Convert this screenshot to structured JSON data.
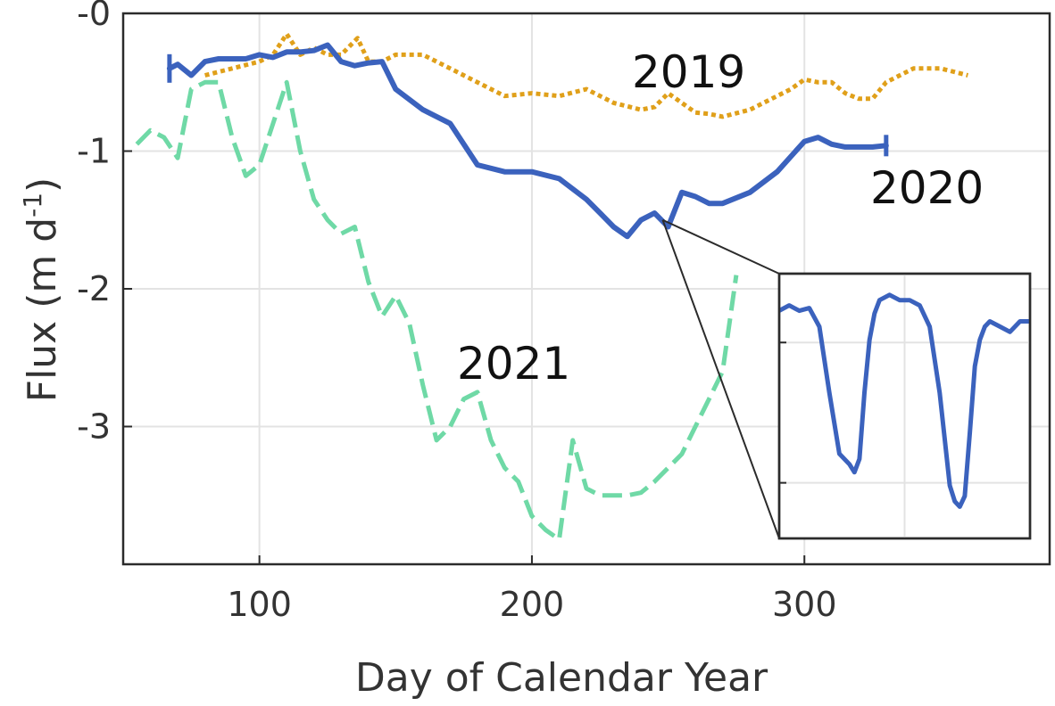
{
  "chart_data": {
    "type": "line",
    "title": "",
    "xlabel": "Day of Calendar Year",
    "ylabel_main": "Flux (m d",
    "ylabel_sup": "-1",
    "ylabel_close": ")",
    "xlim": [
      50,
      390
    ],
    "ylim": [
      -4.0,
      0.0
    ],
    "xticks": [
      100,
      200,
      300
    ],
    "xtick_labels": [
      "100",
      "200",
      "300"
    ],
    "yticks": [
      0,
      -1,
      -2,
      -3
    ],
    "ytick_labels": [
      "-0",
      "-1",
      "-2",
      "-3"
    ],
    "grid": true,
    "series": [
      {
        "name": "2019",
        "color": "#e0a01a",
        "style": "dotted",
        "x": [
          80,
          90,
          100,
          105,
          110,
          115,
          120,
          125,
          130,
          136,
          140,
          145,
          150,
          160,
          170,
          180,
          190,
          200,
          210,
          220,
          225,
          230,
          240,
          245,
          250,
          255,
          260,
          265,
          270,
          280,
          290,
          295,
          300,
          305,
          310,
          315,
          320,
          325,
          330,
          340,
          350,
          360
        ],
        "y": [
          -0.45,
          -0.4,
          -0.35,
          -0.3,
          -0.15,
          -0.3,
          -0.25,
          -0.3,
          -0.3,
          -0.18,
          -0.35,
          -0.35,
          -0.3,
          -0.3,
          -0.4,
          -0.5,
          -0.6,
          -0.58,
          -0.6,
          -0.55,
          -0.6,
          -0.65,
          -0.7,
          -0.68,
          -0.58,
          -0.65,
          -0.72,
          -0.73,
          -0.75,
          -0.7,
          -0.6,
          -0.55,
          -0.48,
          -0.5,
          -0.5,
          -0.58,
          -0.62,
          -0.62,
          -0.5,
          -0.4,
          -0.4,
          -0.45
        ]
      },
      {
        "name": "2020",
        "color": "#3b62bd",
        "style": "solid",
        "x": [
          67,
          70,
          75,
          80,
          85,
          90,
          95,
          100,
          105,
          110,
          115,
          120,
          125,
          130,
          135,
          140,
          145,
          150,
          160,
          170,
          180,
          190,
          200,
          210,
          220,
          225,
          230,
          235,
          240,
          245,
          250,
          255,
          260,
          265,
          270,
          280,
          290,
          300,
          305,
          310,
          315,
          320,
          325,
          330
        ],
        "y": [
          -0.4,
          -0.37,
          -0.45,
          -0.35,
          -0.33,
          -0.33,
          -0.33,
          -0.3,
          -0.32,
          -0.28,
          -0.28,
          -0.27,
          -0.23,
          -0.35,
          -0.38,
          -0.36,
          -0.35,
          -0.55,
          -0.7,
          -0.8,
          -1.1,
          -1.15,
          -1.15,
          -1.2,
          -1.35,
          -1.45,
          -1.55,
          -1.62,
          -1.5,
          -1.45,
          -1.55,
          -1.3,
          -1.33,
          -1.38,
          -1.38,
          -1.3,
          -1.15,
          -0.93,
          -0.9,
          -0.95,
          -0.97,
          -0.97,
          -0.97,
          -0.96
        ]
      },
      {
        "name": "2021",
        "color": "#6fd9a6",
        "style": "dashed",
        "x": [
          55,
          60,
          65,
          70,
          75,
          80,
          85,
          90,
          95,
          100,
          105,
          110,
          115,
          120,
          125,
          130,
          135,
          140,
          145,
          150,
          155,
          160,
          165,
          170,
          175,
          180,
          185,
          190,
          195,
          200,
          205,
          210,
          215,
          220,
          225,
          230,
          235,
          240,
          245,
          250,
          255,
          260,
          265,
          270,
          275
        ],
        "y": [
          -0.95,
          -0.85,
          -0.9,
          -1.05,
          -0.55,
          -0.5,
          -0.5,
          -0.9,
          -1.18,
          -1.1,
          -0.8,
          -0.5,
          -1.0,
          -1.35,
          -1.5,
          -1.6,
          -1.55,
          -1.95,
          -2.2,
          -2.05,
          -2.25,
          -2.7,
          -3.1,
          -3.0,
          -2.8,
          -2.75,
          -3.1,
          -3.3,
          -3.4,
          -3.65,
          -3.75,
          -3.82,
          -3.1,
          -3.45,
          -3.5,
          -3.5,
          -3.5,
          -3.48,
          -3.4,
          -3.3,
          -3.2,
          -3.0,
          -2.8,
          -2.6,
          -1.9
        ]
      }
    ],
    "inset": {
      "color": "#3b62bd",
      "zoom_x": 248,
      "zoom_y": -1.5,
      "x": [
        0,
        0.04,
        0.08,
        0.12,
        0.16,
        0.2,
        0.24,
        0.28,
        0.3,
        0.32,
        0.34,
        0.36,
        0.38,
        0.4,
        0.44,
        0.48,
        0.52,
        0.56,
        0.6,
        0.64,
        0.68,
        0.7,
        0.72,
        0.74,
        0.76,
        0.78,
        0.8,
        0.82,
        0.84,
        0.88,
        0.92,
        0.96,
        1.0
      ],
      "y": [
        0.14,
        0.12,
        0.14,
        0.13,
        0.2,
        0.45,
        0.68,
        0.72,
        0.75,
        0.7,
        0.45,
        0.25,
        0.15,
        0.1,
        0.08,
        0.1,
        0.1,
        0.12,
        0.2,
        0.45,
        0.8,
        0.86,
        0.88,
        0.84,
        0.6,
        0.35,
        0.25,
        0.2,
        0.18,
        0.2,
        0.22,
        0.18,
        0.18
      ]
    }
  }
}
